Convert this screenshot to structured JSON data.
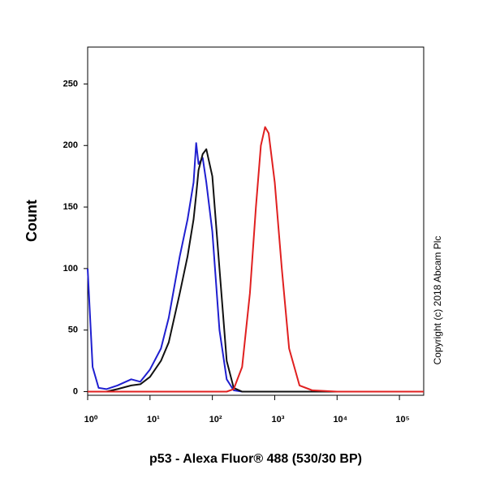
{
  "chart_data": {
    "type": "line",
    "x_label": "p53 - Alexa Fluor® 488 (530/30 BP)",
    "y_label": "Count",
    "annotation": "Copyright (c) 2018 Abcam Plc",
    "xscale": "log",
    "x": [
      1,
      1.2,
      1.5,
      2,
      3,
      5,
      7,
      10,
      15,
      20,
      30,
      40,
      50,
      55,
      60,
      70,
      80,
      100,
      130,
      170,
      220,
      300,
      400,
      500,
      600,
      700,
      800,
      1000,
      1300,
      1700,
      2500,
      4000,
      10000,
      100000,
      245000
    ],
    "series": [
      {
        "color": "#1f1fd0",
        "values": [
          100,
          20,
          3,
          2,
          5,
          10,
          8,
          18,
          35,
          60,
          110,
          140,
          170,
          202,
          185,
          190,
          170,
          130,
          50,
          10,
          1,
          0,
          0,
          0,
          0,
          0,
          0,
          0,
          0,
          0,
          0,
          0,
          0,
          0,
          0
        ]
      },
      {
        "color": "#111111",
        "values": [
          0,
          0,
          0,
          0,
          2,
          5,
          6,
          12,
          25,
          40,
          80,
          110,
          140,
          160,
          180,
          193,
          197,
          175,
          100,
          25,
          3,
          0,
          0,
          0,
          0,
          0,
          0,
          0,
          0,
          0,
          0,
          0,
          0,
          0,
          0
        ]
      },
      {
        "color": "#e02020",
        "values": [
          0,
          0,
          0,
          0,
          0,
          0,
          0,
          0,
          0,
          0,
          0,
          0,
          0,
          0,
          0,
          0,
          0,
          0,
          0,
          0,
          2,
          20,
          80,
          150,
          200,
          215,
          210,
          170,
          100,
          35,
          5,
          1,
          0,
          0,
          0
        ]
      }
    ],
    "xlim": [
      1,
      245000
    ],
    "xticks": [
      {
        "value": 1,
        "label": "10⁰"
      },
      {
        "value": 10,
        "label": "10¹"
      },
      {
        "value": 100,
        "label": "10²"
      },
      {
        "value": 1000,
        "label": "10³"
      },
      {
        "value": 10000,
        "label": "10⁴"
      },
      {
        "value": 100000,
        "label": "10⁵"
      }
    ],
    "ylim": [
      -3,
      280
    ],
    "yticks": [
      0,
      50,
      100,
      150,
      200,
      250
    ]
  }
}
